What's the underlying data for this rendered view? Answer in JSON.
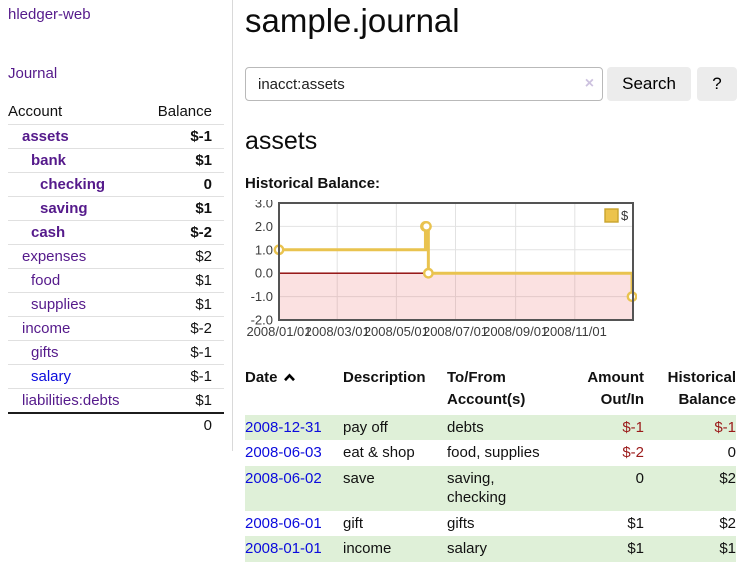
{
  "sidebar": {
    "brand": "hledger-web",
    "journal_link": "Journal",
    "accounts_table": {
      "headers": [
        "Account",
        "Balance"
      ],
      "rows": [
        {
          "name": "assets",
          "indent": 1,
          "bold": true,
          "balance": "$-1",
          "balance_class": "neg-strong",
          "link_style": "visited"
        },
        {
          "name": "bank",
          "indent": 2,
          "bold": true,
          "balance": "$1",
          "balance_class": "",
          "link_style": "visited"
        },
        {
          "name": "checking",
          "indent": 3,
          "bold": true,
          "balance": "0",
          "balance_class": "",
          "link_style": "visited"
        },
        {
          "name": "saving",
          "indent": 3,
          "bold": true,
          "balance": "$1",
          "balance_class": "",
          "link_style": "visited"
        },
        {
          "name": "cash",
          "indent": 2,
          "bold": true,
          "balance": "$-2",
          "balance_class": "neg-strong",
          "link_style": "visited"
        },
        {
          "name": "expenses",
          "indent": 1,
          "bold": false,
          "balance": "$2",
          "balance_class": "",
          "link_style": "visited"
        },
        {
          "name": "food",
          "indent": 2,
          "bold": false,
          "balance": "$1",
          "balance_class": "",
          "link_style": "visited"
        },
        {
          "name": "supplies",
          "indent": 2,
          "bold": false,
          "balance": "$1",
          "balance_class": "",
          "link_style": "visited"
        },
        {
          "name": "income",
          "indent": 1,
          "bold": false,
          "balance": "$-2",
          "balance_class": "neg-soft",
          "link_style": "visited"
        },
        {
          "name": "gifts",
          "indent": 2,
          "bold": false,
          "balance": "$-1",
          "balance_class": "neg-soft",
          "link_style": "visited"
        },
        {
          "name": "salary",
          "indent": 2,
          "bold": false,
          "balance": "$-1",
          "balance_class": "neg-soft",
          "link_style": "unvisited"
        },
        {
          "name": "liabilities:debts",
          "indent": 1,
          "bold": false,
          "balance": "$1",
          "balance_class": "",
          "link_style": "visited"
        }
      ],
      "total": "0"
    }
  },
  "main": {
    "title": "sample.journal",
    "search": {
      "value": "inacct:assets",
      "clear_icon": "×",
      "button_label": "Search",
      "help_button_label": "?"
    },
    "account_heading": "assets",
    "chart_label": "Historical Balance:"
  },
  "chart_data": {
    "type": "line",
    "title": "Historical Balance:",
    "legend_position": "top-right",
    "legend": [
      {
        "label": "$",
        "color": "#ecc34c"
      }
    ],
    "grid": true,
    "y_range": [
      -2,
      3
    ],
    "y_ticks": [
      {
        "v": 3,
        "label": "3.0"
      },
      {
        "v": 2,
        "label": "2.0"
      },
      {
        "v": 1,
        "label": "1.0"
      },
      {
        "v": 0,
        "label": "0.0"
      },
      {
        "v": -1,
        "label": "-1.0"
      },
      {
        "v": -2,
        "label": "-2.0"
      }
    ],
    "x_range_days": [
      0,
      365
    ],
    "x_ticks": [
      {
        "d": 0,
        "label": "2008/01/01"
      },
      {
        "d": 60,
        "label": "2008/03/01"
      },
      {
        "d": 121,
        "label": "2008/05/01"
      },
      {
        "d": 182,
        "label": "2008/07/01"
      },
      {
        "d": 244,
        "label": "2008/09/01"
      },
      {
        "d": 305,
        "label": "2008/11/01"
      }
    ],
    "series": [
      {
        "name": "$",
        "step": true,
        "color": "#e9c34f",
        "points_day_value": [
          [
            0,
            1
          ],
          [
            151,
            2
          ],
          [
            152,
            2
          ],
          [
            154,
            0
          ],
          [
            364,
            -1
          ]
        ]
      }
    ],
    "negative_region": {
      "from": 0,
      "to": -2,
      "fill": "rgba(235,90,90,0.18)",
      "top_line_color": "#8b0000"
    }
  },
  "register": {
    "columns": [
      "Date",
      "Description",
      "To/From Account(s)",
      "Amount Out/In",
      "Historical Balance"
    ],
    "sort_icon": "chevron-up",
    "rows": [
      {
        "date": "2008-12-31",
        "description": "pay off",
        "accounts": "debts",
        "amount": "$-1",
        "amount_negative": true,
        "balance": "$-1",
        "balance_negative": true
      },
      {
        "date": "2008-06-03",
        "description": "eat & shop",
        "accounts": "food, supplies",
        "amount": "$-2",
        "amount_negative": true,
        "balance": "0",
        "balance_negative": false
      },
      {
        "date": "2008-06-02",
        "description": "save",
        "accounts": "saving, checking",
        "amount": "0",
        "amount_negative": false,
        "balance": "$2",
        "balance_negative": false
      },
      {
        "date": "2008-06-01",
        "description": "gift",
        "accounts": "gifts",
        "amount": "$1",
        "amount_negative": false,
        "balance": "$2",
        "balance_negative": false
      },
      {
        "date": "2008-01-01",
        "description": "income",
        "accounts": "salary",
        "amount": "$1",
        "amount_negative": false,
        "balance": "$1",
        "balance_negative": false
      }
    ]
  }
}
